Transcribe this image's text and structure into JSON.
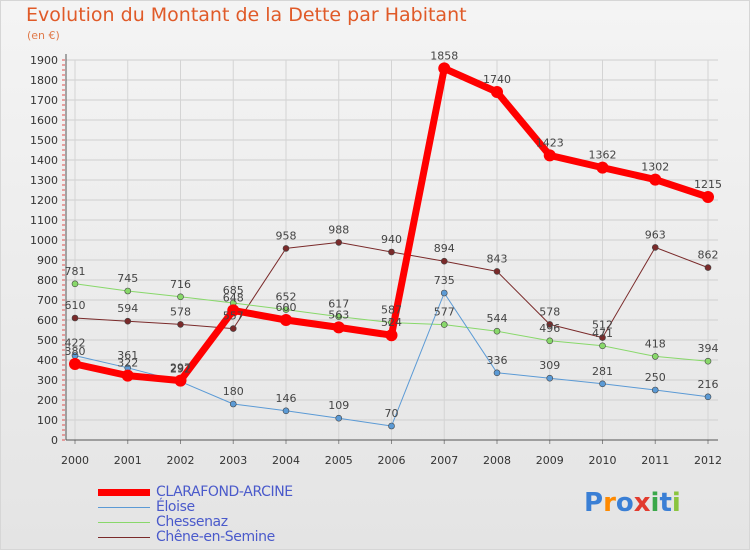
{
  "title": "Evolution du Montant de la Dette par Habitant",
  "subtitle": "(en €)",
  "logo": {
    "text": "Proxiti",
    "colors": [
      "#3a7fd5",
      "#ff8a00",
      "#3a7fd5",
      "#e23b2e",
      "#3aa84a",
      "#3a7fd5",
      "#8bc53f"
    ]
  },
  "chart_data": {
    "type": "line",
    "x": [
      "2000",
      "2001",
      "2002",
      "2003",
      "2004",
      "2005",
      "2006",
      "2007",
      "2008",
      "2009",
      "2010",
      "2011",
      "2012"
    ],
    "ylim": [
      0,
      1900
    ],
    "yticks": [
      0,
      100,
      200,
      300,
      400,
      500,
      600,
      700,
      800,
      900,
      1000,
      1100,
      1200,
      1300,
      1400,
      1500,
      1600,
      1700,
      1800,
      1900
    ],
    "grid": true,
    "legend_position": "bottom-left",
    "series": [
      {
        "name": "Chêne-en-Semine",
        "color": "#7a2a2a",
        "width": 1,
        "values": [
          610,
          594,
          578,
          557,
          958,
          988,
          940,
          894,
          843,
          578,
          512,
          963,
          862
        ]
      },
      {
        "name": "Chessenaz",
        "color": "#88d86a",
        "width": 1,
        "values": [
          781,
          745,
          716,
          685,
          652,
          617,
          587,
          577,
          544,
          496,
          471,
          418,
          394
        ]
      },
      {
        "name": "Éloise",
        "color": "#5b9ad5",
        "width": 1,
        "values": [
          422,
          361,
          292,
          180,
          146,
          109,
          70,
          735,
          336,
          309,
          281,
          250,
          216
        ]
      },
      {
        "name": "CLARAFOND-ARCINE",
        "color": "#ff0000",
        "width": 7,
        "values": [
          380,
          322,
          297,
          648,
          600,
          563,
          524,
          1858,
          1740,
          1423,
          1362,
          1302,
          1215
        ]
      }
    ]
  }
}
